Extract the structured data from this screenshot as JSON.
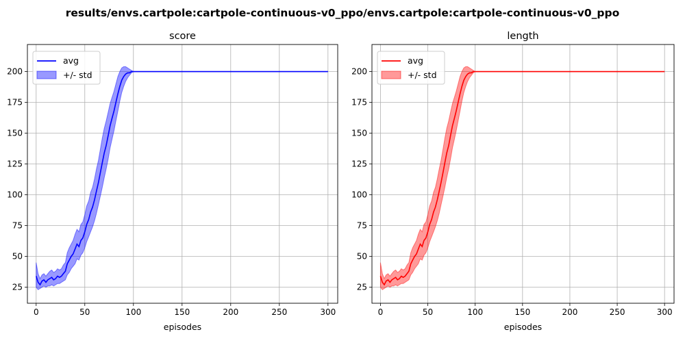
{
  "suptitle": "results/envs.cartpole:cartpole-continuous-v0_ppo/envs.cartpole:cartpole-continuous-v0_ppo",
  "chart_data": [
    {
      "type": "line",
      "title": "score",
      "xlabel": "episodes",
      "ylabel": "",
      "xlim": [
        -9,
        310
      ],
      "ylim": [
        12,
        222
      ],
      "xticks": [
        0,
        50,
        100,
        150,
        200,
        250,
        300
      ],
      "yticks": [
        25,
        50,
        75,
        100,
        125,
        150,
        175,
        200
      ],
      "grid": true,
      "legend_position": "top-left",
      "color": "#0000ff",
      "legend": [
        {
          "label": "avg",
          "kind": "line"
        },
        {
          "label": "+/- std",
          "kind": "band"
        }
      ],
      "x": [
        0,
        2,
        4,
        6,
        8,
        10,
        12,
        14,
        16,
        18,
        20,
        22,
        24,
        26,
        28,
        30,
        32,
        34,
        36,
        38,
        40,
        42,
        44,
        46,
        48,
        50,
        52,
        54,
        56,
        58,
        60,
        62,
        64,
        66,
        68,
        70,
        72,
        74,
        76,
        78,
        80,
        82,
        84,
        86,
        88,
        90,
        92,
        94,
        96,
        98,
        100,
        105,
        110,
        150,
        200,
        250,
        300
      ],
      "series": [
        {
          "name": "avg",
          "values": [
            34,
            29,
            27,
            30,
            31,
            29,
            31,
            32,
            33,
            31,
            32,
            34,
            33,
            34,
            36,
            38,
            44,
            47,
            50,
            52,
            56,
            60,
            58,
            63,
            65,
            70,
            76,
            80,
            86,
            90,
            96,
            103,
            110,
            118,
            126,
            134,
            140,
            148,
            156,
            162,
            168,
            175,
            182,
            188,
            193,
            196,
            198,
            199,
            199,
            200,
            200,
            200,
            200,
            200,
            200,
            200,
            200
          ],
          "lower": [
            25,
            23,
            24,
            25,
            26,
            25,
            26,
            26,
            27,
            26,
            27,
            28,
            28,
            29,
            30,
            31,
            35,
            37,
            40,
            42,
            44,
            48,
            47,
            51,
            53,
            57,
            62,
            66,
            70,
            74,
            79,
            85,
            92,
            99,
            106,
            114,
            121,
            129,
            138,
            145,
            152,
            160,
            168,
            176,
            183,
            188,
            192,
            195,
            197,
            199,
            200,
            200,
            200,
            200,
            200,
            200,
            200
          ],
          "upper": [
            45,
            36,
            32,
            35,
            36,
            34,
            36,
            38,
            39,
            37,
            38,
            40,
            39,
            40,
            43,
            45,
            53,
            57,
            60,
            63,
            68,
            72,
            70,
            76,
            78,
            84,
            91,
            95,
            102,
            106,
            113,
            121,
            128,
            137,
            146,
            154,
            160,
            167,
            174,
            179,
            184,
            190,
            196,
            200,
            203,
            204,
            204,
            203,
            202,
            201,
            200,
            200,
            200,
            200,
            200,
            200,
            200
          ]
        }
      ]
    },
    {
      "type": "line",
      "title": "length",
      "xlabel": "episodes",
      "ylabel": "",
      "xlim": [
        -9,
        310
      ],
      "ylim": [
        12,
        222
      ],
      "xticks": [
        0,
        50,
        100,
        150,
        200,
        250,
        300
      ],
      "yticks": [
        25,
        50,
        75,
        100,
        125,
        150,
        175,
        200
      ],
      "grid": true,
      "legend_position": "top-left",
      "color": "#ff0000",
      "legend": [
        {
          "label": "avg",
          "kind": "line"
        },
        {
          "label": "+/- std",
          "kind": "band"
        }
      ],
      "x": [
        0,
        2,
        4,
        6,
        8,
        10,
        12,
        14,
        16,
        18,
        20,
        22,
        24,
        26,
        28,
        30,
        32,
        34,
        36,
        38,
        40,
        42,
        44,
        46,
        48,
        50,
        52,
        54,
        56,
        58,
        60,
        62,
        64,
        66,
        68,
        70,
        72,
        74,
        76,
        78,
        80,
        82,
        84,
        86,
        88,
        90,
        92,
        94,
        96,
        98,
        100,
        105,
        110,
        150,
        200,
        250,
        300
      ],
      "series": [
        {
          "name": "avg",
          "values": [
            34,
            29,
            27,
            30,
            31,
            29,
            31,
            32,
            33,
            31,
            32,
            34,
            33,
            34,
            36,
            38,
            44,
            47,
            50,
            52,
            56,
            60,
            58,
            63,
            65,
            70,
            76,
            80,
            86,
            90,
            96,
            103,
            110,
            118,
            126,
            134,
            140,
            148,
            156,
            162,
            168,
            175,
            182,
            188,
            193,
            196,
            198,
            199,
            199,
            200,
            200,
            200,
            200,
            200,
            200,
            200,
            200
          ],
          "lower": [
            25,
            23,
            24,
            25,
            26,
            25,
            26,
            26,
            27,
            26,
            27,
            28,
            28,
            29,
            30,
            31,
            35,
            37,
            40,
            42,
            44,
            48,
            47,
            51,
            53,
            57,
            62,
            66,
            70,
            74,
            79,
            85,
            92,
            99,
            106,
            114,
            121,
            129,
            138,
            145,
            152,
            160,
            168,
            176,
            183,
            188,
            192,
            195,
            197,
            199,
            200,
            200,
            200,
            200,
            200,
            200,
            200
          ],
          "upper": [
            45,
            36,
            32,
            35,
            36,
            34,
            36,
            38,
            39,
            37,
            38,
            40,
            39,
            40,
            43,
            45,
            53,
            57,
            60,
            63,
            68,
            72,
            70,
            76,
            78,
            84,
            91,
            95,
            102,
            106,
            113,
            121,
            128,
            137,
            146,
            154,
            160,
            167,
            174,
            179,
            184,
            190,
            196,
            200,
            203,
            204,
            204,
            203,
            202,
            201,
            200,
            200,
            200,
            200,
            200,
            200,
            200
          ]
        }
      ]
    }
  ]
}
